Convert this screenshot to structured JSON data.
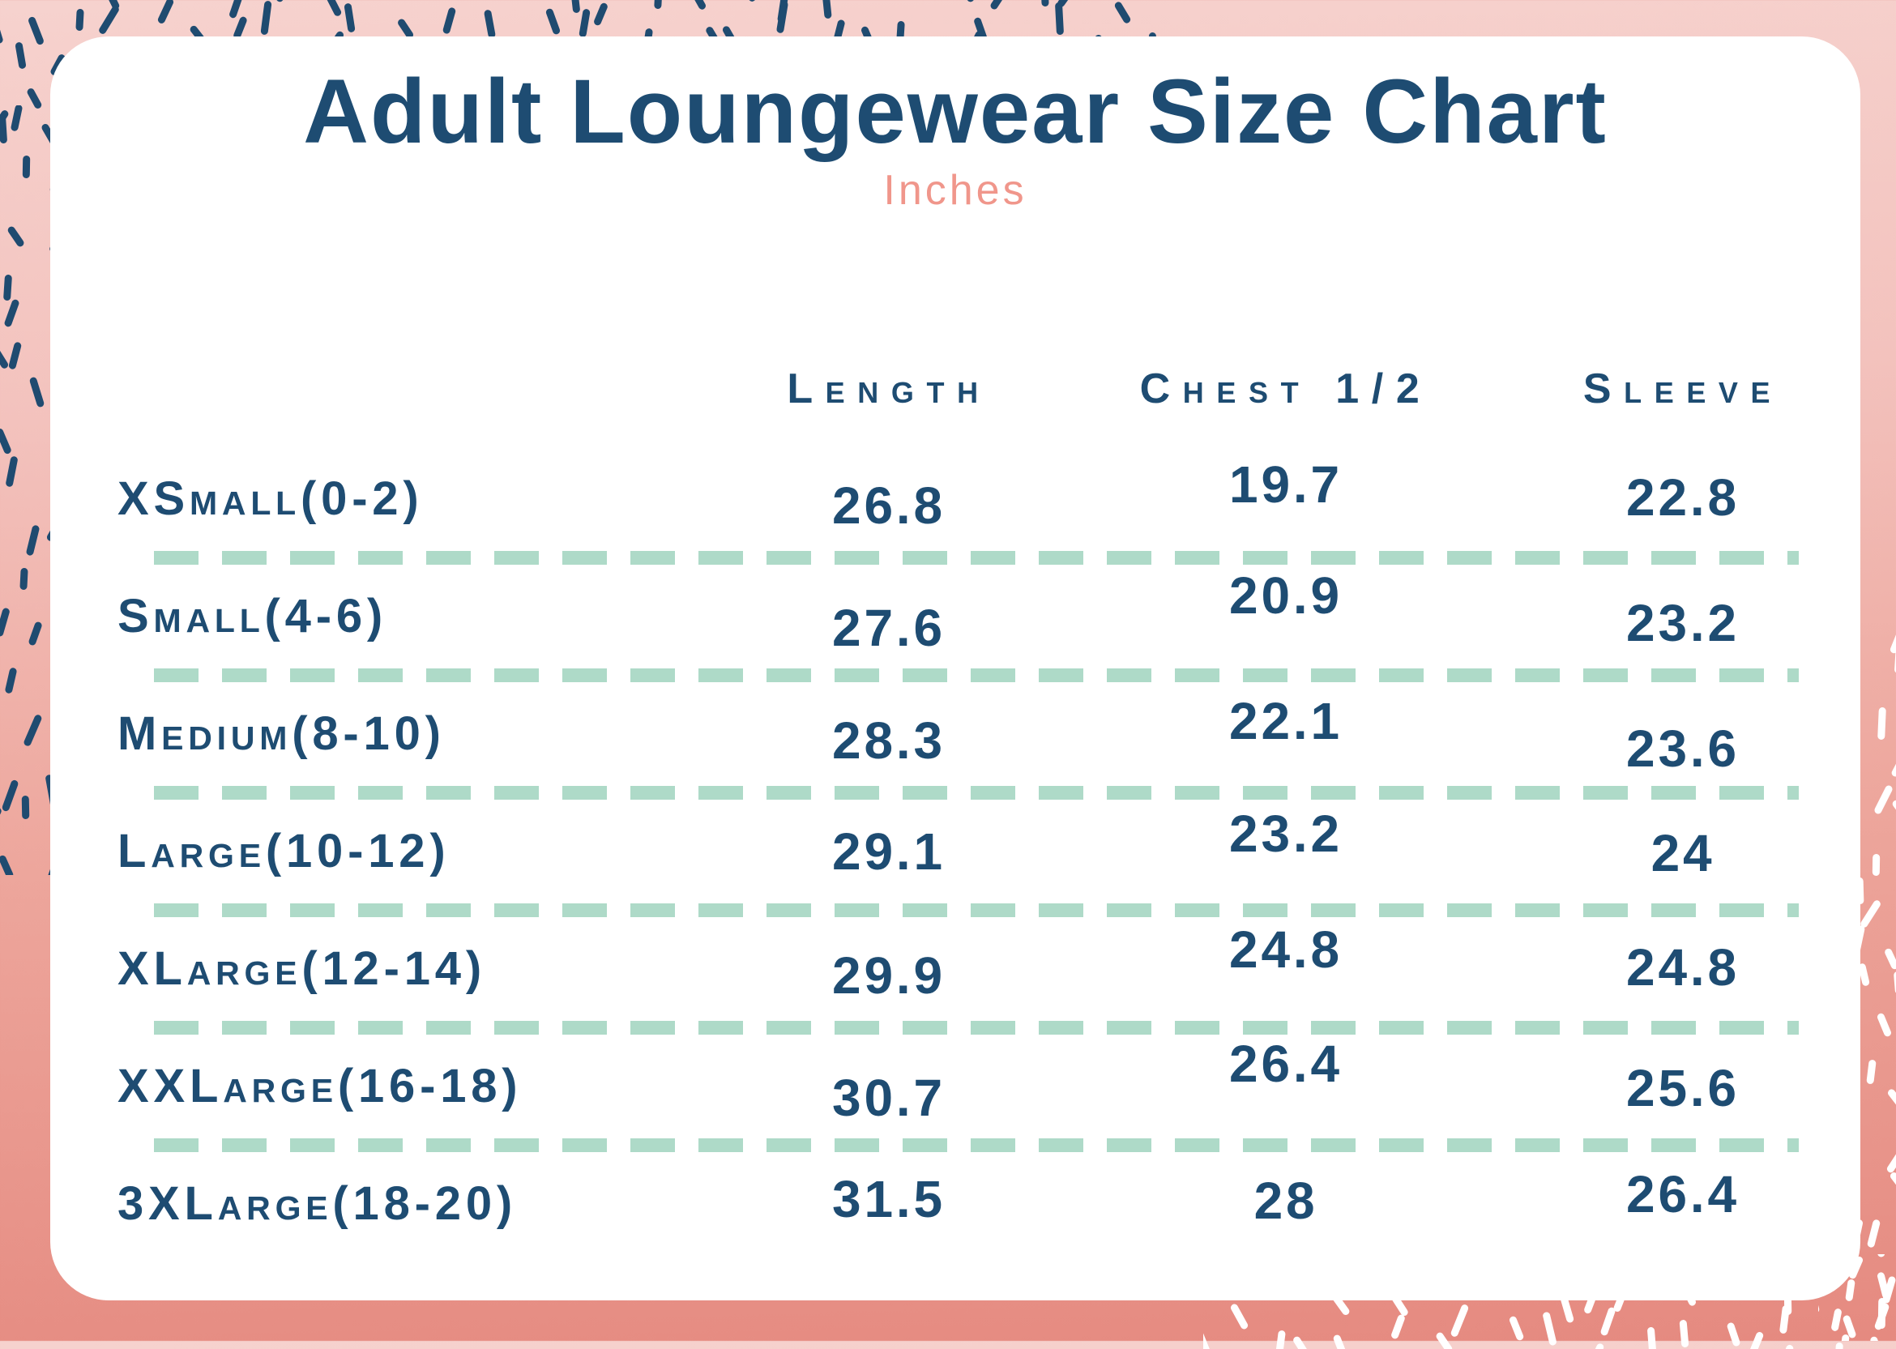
{
  "chart_data": {
    "type": "table",
    "title": "Adult Loungewear Size Chart",
    "subtitle": "Inches",
    "unit": "inches",
    "columns": [
      "Length",
      "Chest 1/2",
      "Sleeve"
    ],
    "row_labels": [
      "XSmall(0-2)",
      "Small(4-6)",
      "Medium(8-10)",
      "Large(10-12)",
      "XLarge(12-14)",
      "XXLarge(16-18)",
      "3XLarge(18-20)"
    ],
    "rows": [
      [
        26.8,
        19.7,
        22.8
      ],
      [
        27.6,
        20.9,
        23.2
      ],
      [
        28.3,
        22.1,
        23.6
      ],
      [
        29.1,
        23.2,
        24
      ],
      [
        29.9,
        24.8,
        24.8
      ],
      [
        30.7,
        26.4,
        25.6
      ],
      [
        31.5,
        28,
        26.4
      ]
    ]
  },
  "colors": {
    "navy_text": "#1e4c72",
    "navy_dashes": "#1f4b70",
    "salmon_subtitle": "#f0968b",
    "mint_divider": "#aedac8",
    "bg_pink_light": "#f6d2ce",
    "bg_pink_deep": "#e58a80",
    "card_background": "#ffffff",
    "white_dashes": "#ffffff"
  }
}
